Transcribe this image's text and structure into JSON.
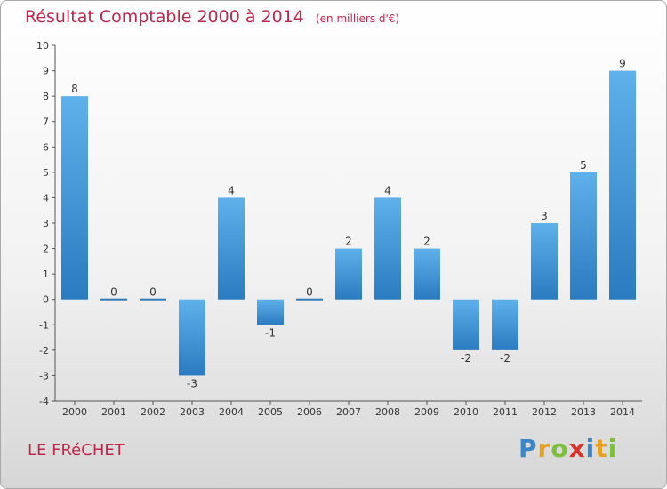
{
  "title": "Résultat Comptable 2000 à 2014",
  "subtitle": "(en milliers d'€)",
  "commune": "LE FRéCHET",
  "logo": {
    "letters": [
      "P",
      "r",
      "o",
      "x",
      "i",
      "t",
      "i"
    ],
    "colors": [
      "#3a87c8",
      "#e8a020",
      "#7bbf3a",
      "#d9342b",
      "#3a87c8",
      "#e8a020",
      "#7bbf3a"
    ]
  },
  "colors": {
    "bar_top": "#5eb1ea",
    "bar_bottom": "#2a7bc0",
    "title": "#c0254b"
  },
  "chart_data": {
    "type": "bar",
    "title": "Résultat Comptable 2000 à 2014",
    "ylabel": "en milliers d'€",
    "xlabel": "",
    "categories": [
      "2000",
      "2001",
      "2002",
      "2003",
      "2004",
      "2005",
      "2006",
      "2007",
      "2008",
      "2009",
      "2010",
      "2011",
      "2012",
      "2013",
      "2014"
    ],
    "values": [
      8,
      0,
      0,
      -3,
      4,
      -1,
      0,
      2,
      4,
      2,
      -2,
      -2,
      3,
      5,
      9
    ],
    "labels": [
      "8",
      "0",
      "0",
      "-3",
      "4",
      "-1",
      "0",
      "2",
      "4",
      "2",
      "-2",
      "-2",
      "3",
      "5",
      "9"
    ],
    "ylim": [
      -4,
      10
    ],
    "yticks": [
      "10",
      "9",
      "8",
      "7",
      "6",
      "5",
      "4",
      "3",
      "2",
      "1",
      "0",
      "-1",
      "-2",
      "-3",
      "-4"
    ],
    "grid": false
  }
}
